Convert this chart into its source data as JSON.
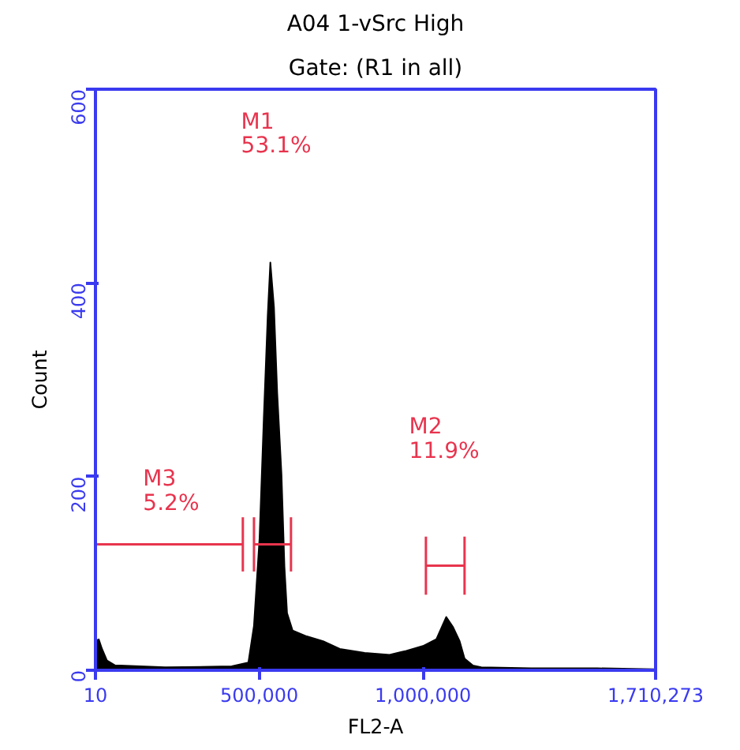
{
  "chart_data": {
    "type": "area",
    "title": "A04 1-vSrc High",
    "subtitle": "Gate: (R1 in all)",
    "xlabel": "FL2-A",
    "ylabel": "Count",
    "xlim": [
      10,
      1710273
    ],
    "ylim": [
      0,
      600
    ],
    "xticks": [
      10,
      {
        "value": 500000,
        "label": "500,000"
      },
      {
        "value": 1000000,
        "label": "1,000,000"
      },
      {
        "value": 1710273,
        "label": "1,710,273"
      }
    ],
    "yticks": [
      0,
      200,
      400,
      600
    ],
    "grid": false,
    "series": [
      {
        "color": "#000000",
        "x": [
          10,
          10000,
          20000,
          35000,
          60000,
          213000,
          416000,
          467000,
          484000,
          501000,
          514000,
          526000,
          534000,
          545000,
          555000,
          568000,
          577000,
          585000,
          602000,
          645000,
          695000,
          746000,
          822000,
          898000,
          949000,
          1000000,
          1041000,
          1071000,
          1091000,
          1112000,
          1127000,
          1152000,
          1178000,
          1330000,
          1533000,
          1710273
        ],
        "values": [
          30,
          32,
          22,
          10,
          5,
          3,
          4,
          8,
          46,
          136,
          260,
          366,
          421,
          375,
          286,
          202,
          107,
          59,
          41,
          35,
          30,
          22,
          18,
          16,
          20,
          25,
          32,
          55,
          45,
          30,
          12,
          5,
          3,
          2,
          2,
          1
        ]
      },
      {
        "type": "line",
        "color": "#e8344e",
        "x": [
          484000,
          597000
        ],
        "values": [
          130,
          130
        ],
        "errors": [
          28,
          28
        ]
      },
      {
        "type": "line",
        "color": "#e8344e",
        "x": [
          1009000,
          1127000
        ],
        "values": [
          108,
          108
        ],
        "errors": [
          30,
          30
        ]
      },
      {
        "type": "line",
        "color": "#e8344e",
        "x": [
          10,
          450000
        ],
        "values": [
          130,
          130
        ],
        "errors": [
          null,
          28
        ]
      }
    ],
    "annotations": [
      "M1\n53.1%",
      "M2\n11.9%",
      "M3\n5.2%"
    ]
  }
}
